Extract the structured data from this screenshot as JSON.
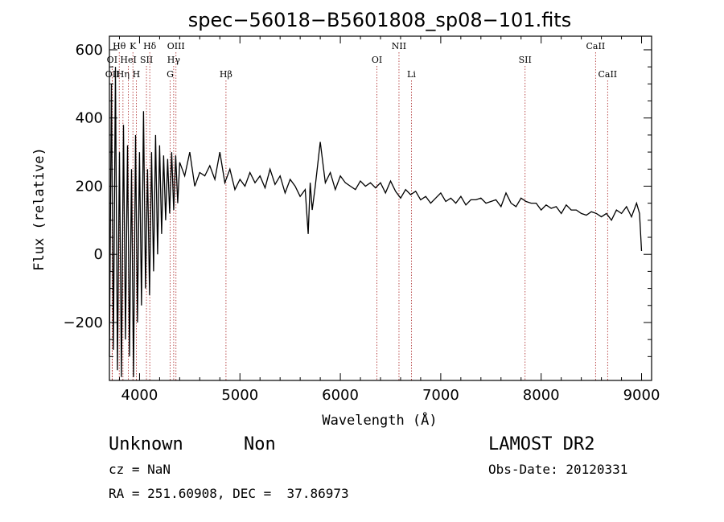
{
  "chart_data": {
    "type": "line",
    "title": "spec−56018−B5601808_sp08−101.fits",
    "xlabel": "Wavelength (Å)",
    "ylabel": "Flux (relative)",
    "xlim": [
      3700,
      9100
    ],
    "ylim": [
      -370,
      640
    ],
    "xticks": [
      4000,
      5000,
      6000,
      7000,
      8000,
      9000
    ],
    "yticks": [
      -200,
      0,
      200,
      400,
      600
    ],
    "series": [
      {
        "x": [
          3700,
          3720,
          3740,
          3760,
          3780,
          3800,
          3820,
          3840,
          3860,
          3880,
          3900,
          3920,
          3940,
          3960,
          3980,
          4000,
          4020,
          4040,
          4060,
          4080,
          4100,
          4120,
          4140,
          4160,
          4180,
          4200,
          4220,
          4240,
          4260,
          4280,
          4300,
          4320,
          4340,
          4360,
          4380,
          4400,
          4450,
          4500,
          4550,
          4600,
          4650,
          4700,
          4750,
          4800,
          4850,
          4900,
          4950,
          5000,
          5050,
          5100,
          5150,
          5200,
          5250,
          5300,
          5350,
          5400,
          5450,
          5500,
          5550,
          5600,
          5650,
          5680,
          5700,
          5720,
          5750,
          5800,
          5850,
          5900,
          5950,
          6000,
          6050,
          6100,
          6150,
          6200,
          6250,
          6300,
          6350,
          6400,
          6450,
          6500,
          6550,
          6600,
          6650,
          6700,
          6750,
          6800,
          6850,
          6900,
          6950,
          7000,
          7050,
          7100,
          7150,
          7200,
          7250,
          7300,
          7350,
          7400,
          7450,
          7500,
          7550,
          7600,
          7650,
          7700,
          7750,
          7800,
          7850,
          7900,
          7950,
          8000,
          8050,
          8100,
          8150,
          8200,
          8250,
          8300,
          8350,
          8400,
          8450,
          8500,
          8550,
          8600,
          8650,
          8700,
          8750,
          8800,
          8850,
          8900,
          8950,
          8980,
          9000
        ],
        "y": [
          -300,
          500,
          -280,
          550,
          -340,
          300,
          -360,
          380,
          -250,
          320,
          -300,
          250,
          -360,
          350,
          -200,
          300,
          -150,
          420,
          -100,
          250,
          -120,
          300,
          -50,
          350,
          0,
          320,
          60,
          290,
          100,
          280,
          120,
          300,
          130,
          290,
          150,
          270,
          230,
          300,
          200,
          240,
          230,
          260,
          220,
          300,
          210,
          250,
          190,
          220,
          200,
          240,
          210,
          230,
          195,
          250,
          205,
          230,
          180,
          220,
          200,
          170,
          190,
          60,
          210,
          130,
          200,
          330,
          210,
          240,
          190,
          230,
          210,
          200,
          190,
          215,
          200,
          210,
          195,
          210,
          180,
          215,
          185,
          165,
          190,
          175,
          185,
          160,
          170,
          150,
          165,
          180,
          155,
          165,
          150,
          170,
          145,
          160,
          160,
          165,
          150,
          155,
          160,
          140,
          180,
          150,
          140,
          165,
          155,
          150,
          150,
          130,
          145,
          135,
          140,
          120,
          145,
          130,
          130,
          120,
          115,
          125,
          120,
          110,
          120,
          100,
          130,
          120,
          140,
          110,
          150,
          120,
          10
        ]
      }
    ],
    "line_markers": [
      {
        "label": "Hθ",
        "wave": 3798,
        "row": 0
      },
      {
        "label": "K",
        "wave": 3934,
        "row": 0
      },
      {
        "label": "Hδ",
        "wave": 4102,
        "row": 0
      },
      {
        "label": "OIII",
        "wave": 4363,
        "row": 0
      },
      {
        "label": "NII",
        "wave": 6584,
        "row": 0
      },
      {
        "label": "CaII",
        "wave": 8542,
        "row": 0
      },
      {
        "label": "OI",
        "wave": 3727,
        "row": 1
      },
      {
        "label": "HeI",
        "wave": 3889,
        "row": 1
      },
      {
        "label": "SII",
        "wave": 4069,
        "row": 1
      },
      {
        "label": "Hγ",
        "wave": 4340,
        "row": 1
      },
      {
        "label": "OI",
        "wave": 6364,
        "row": 1
      },
      {
        "label": "SII",
        "wave": 7840,
        "row": 1
      },
      {
        "label": "OII",
        "wave": 3729,
        "row": 2
      },
      {
        "label": "Hη",
        "wave": 3835,
        "row": 2
      },
      {
        "label": "H",
        "wave": 3968,
        "row": 2
      },
      {
        "label": "G",
        "wave": 4305,
        "row": 2
      },
      {
        "label": "Hβ",
        "wave": 4861,
        "row": 2
      },
      {
        "label": "Li",
        "wave": 6708,
        "row": 2
      },
      {
        "label": "CaII",
        "wave": 8662,
        "row": 2
      }
    ],
    "grid": false
  },
  "info": {
    "object_class": "Unknown",
    "object_subclass": "Non",
    "survey": "LAMOST DR2",
    "cz": "cz = NaN",
    "obs_date": "Obs-Date: 20120331",
    "coords": "RA = 251.60908, DEC =  37.86973"
  }
}
